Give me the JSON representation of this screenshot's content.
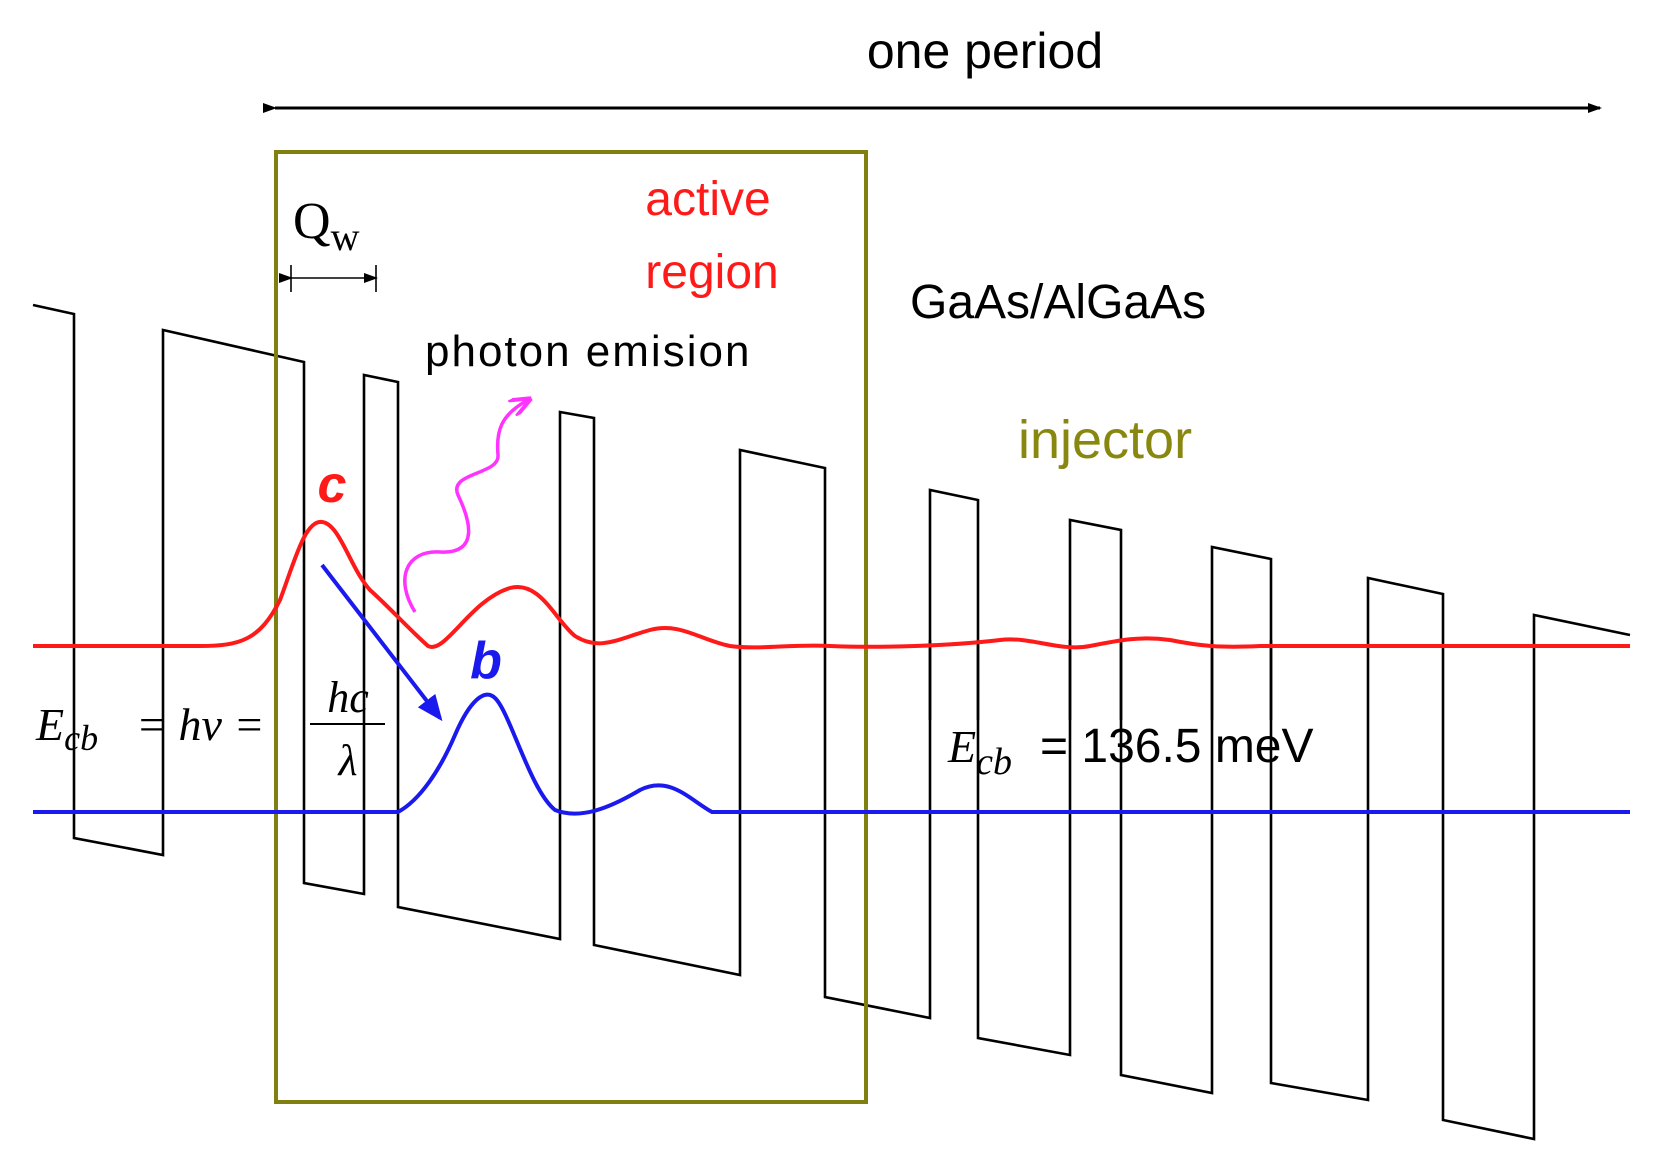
{
  "title": "one period",
  "labels": {
    "qw_main": "Q",
    "qw_sub": "w",
    "active_line1": "active",
    "active_line2": "region",
    "material": "GaAs/AlGaAs",
    "photon": "photon emision",
    "injector": "injector",
    "state_c": "c",
    "state_b": "b"
  },
  "equation_left": {
    "lhs_main": "E",
    "lhs_sub": "cb",
    "middle": "= hν =",
    "numerator": "hc",
    "denominator": "λ"
  },
  "equation_right": {
    "lhs_main": "E",
    "lhs_sub": "cb",
    "rhs": "= 136.5 meV"
  },
  "colors": {
    "band": "#000000",
    "state_c": "#ff1a1a",
    "state_b": "#1a1aee",
    "photon": "#ff33ff",
    "transition_arrow": "#1a1aee",
    "active_box": "#808010",
    "injector_text": "#888810"
  }
}
